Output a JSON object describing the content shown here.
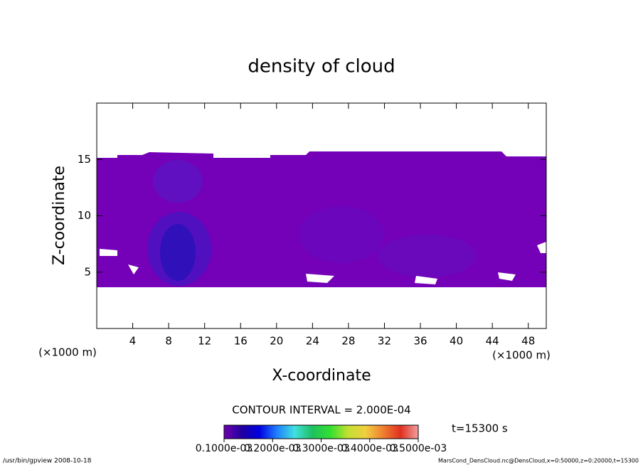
{
  "chart_data": {
    "type": "contour",
    "title": "density of cloud",
    "x_label": "X-coordinate",
    "y_label": "Z-coordinate",
    "x_unit": "(×1000 m)",
    "y_unit": "(×1000 m)",
    "xlim": [
      0,
      50
    ],
    "xticks": [
      4,
      8,
      12,
      16,
      20,
      24,
      28,
      32,
      36,
      40,
      44,
      48
    ],
    "ylim": [
      0,
      20
    ],
    "yticks": [
      5,
      10,
      15
    ],
    "contour_interval": "CONTOUR INTERVAL = 2.000E-04",
    "time_label": "t=15300 s",
    "colorbar": {
      "clim": [
        0.0001,
        0.0005
      ],
      "ticks": [
        {
          "value": 0.0001,
          "label": "0.1000e-03"
        },
        {
          "value": 0.0002,
          "label": "0.2000e-03"
        },
        {
          "value": 0.0003,
          "label": "0.3000e-03"
        },
        {
          "value": 0.0004,
          "label": "0.4000e-03"
        },
        {
          "value": 0.0005,
          "label": "0.5000e-03"
        }
      ],
      "colormap": [
        "#7000b0",
        "#2000a0",
        "#0000e0",
        "#2080ff",
        "#40e0e0",
        "#20c060",
        "#30e030",
        "#c0e030",
        "#f0d040",
        "#f08030",
        "#e03020",
        "#f0a0a0"
      ]
    },
    "footer_left": "/usr/bin/gpview   2008-10-18",
    "footer_right": "MarsCond_DensCloud.nc@DensCloud,x=0:50000,z=0:20000,t=15300"
  }
}
